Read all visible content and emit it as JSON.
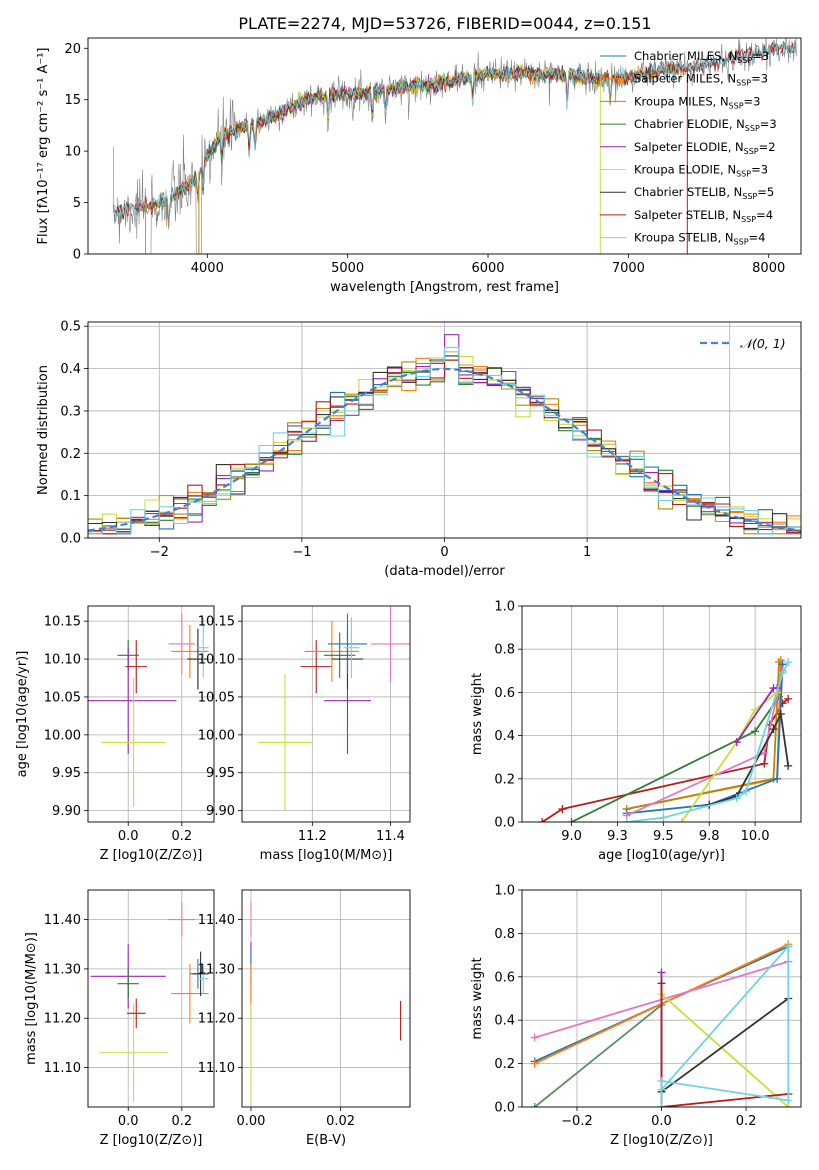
{
  "figure_title": "PLATE=2274, MJD=53726, FIBERID=0044, z=0.151",
  "colors": {
    "Chabrier MILES": "#1f77b4",
    "Salpeter MILES": "#ff7f0e",
    "Kroupa MILES": "#b8860b",
    "Chabrier ELODIE": "#2e7d32",
    "Salpeter ELODIE": "#9c27b0",
    "Kroupa ELODIE": "#cddc39",
    "Chabrier STELIB": "#333333",
    "Salpeter STELIB": "#b71c1c",
    "Kroupa STELIB": "#6dd5e0",
    "data": "#808080",
    "normal": "#4a7fcf",
    "pink": "#e377c2",
    "teal": "#17becf",
    "olive": "#5a8f63"
  },
  "chart_data": [
    {
      "id": "spectrum",
      "type": "line",
      "title": "PLATE=2274, MJD=53726, FIBERID=0044, z=0.151",
      "xlabel": "wavelength [Angstrom, rest frame]",
      "ylabel": "Flux [f_λ 10^-17 erg cm^-2 s^-1 A^-1]",
      "xlim": [
        3150,
        8230
      ],
      "ylim": [
        0,
        21
      ],
      "xticks": [
        4000,
        5000,
        6000,
        7000,
        8000
      ],
      "yticks": [
        0,
        5,
        10,
        15,
        20
      ],
      "legend_position": "upper-right",
      "grid": false,
      "continuum": {
        "x": [
          3330,
          3500,
          3700,
          3900,
          4000,
          4100,
          4300,
          4500,
          4700,
          4900,
          5000,
          5200,
          5400,
          5600,
          5800,
          6000,
          6200,
          6400,
          6600,
          6800,
          7000,
          7200,
          7400,
          7600,
          7800,
          8000,
          8200
        ],
        "y": [
          4.2,
          4.5,
          5.0,
          7.0,
          9.5,
          11.5,
          12.5,
          13.5,
          15.0,
          15.5,
          15.5,
          15.8,
          16.2,
          16.5,
          17.0,
          17.5,
          17.5,
          17.5,
          17.3,
          17.0,
          17.2,
          17.8,
          18.0,
          18.6,
          19.2,
          19.7,
          20.0
        ]
      },
      "series": [
        {
          "name": "Chabrier MILES, N_SSP=3",
          "label": "Chabrier MILES, N",
          "ssp": "3"
        },
        {
          "name": "Salpeter MILES, N_SSP=3",
          "label": "Salpeter MILES, N",
          "ssp": "3"
        },
        {
          "name": "Kroupa MILES, N_SSP=3",
          "label": "Kroupa MILES, N",
          "ssp": "3"
        },
        {
          "name": "Chabrier ELODIE, N_SSP=3",
          "label": "Chabrier ELODIE, N",
          "ssp": "3"
        },
        {
          "name": "Salpeter ELODIE, N_SSP=2",
          "label": "Salpeter ELODIE, N",
          "ssp": "2"
        },
        {
          "name": "Kroupa ELODIE, N_SSP=3",
          "label": "Kroupa ELODIE, N",
          "ssp": "3"
        },
        {
          "name": "Chabrier STELIB, N_SSP=5",
          "label": "Chabrier STELIB, N",
          "ssp": "5"
        },
        {
          "name": "Salpeter STELIB, N_SSP=4",
          "label": "Salpeter STELIB, N",
          "ssp": "4"
        },
        {
          "name": "Kroupa STELIB, N_SSP=4",
          "label": "Kroupa STELIB, N",
          "ssp": "4"
        }
      ],
      "ssp_subscript": "SSP"
    },
    {
      "id": "residuals",
      "type": "histogram",
      "xlabel": "(data-model)/error",
      "ylabel": "Normed distribution",
      "xlim": [
        -2.5,
        2.5
      ],
      "ylim": [
        0,
        0.51
      ],
      "xticks": [
        -2,
        -1,
        0,
        1,
        2
      ],
      "yticks": [
        0.0,
        0.1,
        0.2,
        0.3,
        0.4,
        0.5
      ],
      "grid": true,
      "legend": "𝒩(0, 1)",
      "legend_position": "upper-right",
      "bin_width": 0.1,
      "bins_from": -2.5,
      "peak_values": [
        0.42,
        0.44,
        0.42,
        0.44,
        0.48,
        0.44,
        0.43,
        0.42,
        0.45
      ]
    },
    {
      "id": "age_vs_Z",
      "type": "errorbar",
      "xlabel": "Z [log10(Z/Z⊙)]",
      "ylabel": "age  [log10(age/yr)]",
      "xlim": [
        -0.15,
        0.32
      ],
      "ylim": [
        9.885,
        10.17
      ],
      "xticks": [
        0.0,
        0.2
      ],
      "yticks": [
        9.9,
        9.95,
        10.0,
        10.05,
        10.1,
        10.15
      ],
      "grid": true,
      "points": [
        {
          "series": "Chabrier ELODIE",
          "x": 0.0,
          "y": 10.105,
          "xerr": 0.04,
          "yerr": 0.02
        },
        {
          "series": "Salpeter ELODIE",
          "x": 0.0,
          "y": 10.045,
          "xerr": 0.18,
          "yerr": 0.07
        },
        {
          "series": "Kroupa ELODIE",
          "x": 0.02,
          "y": 9.99,
          "xerr": 0.12,
          "yerr": 0.085
        },
        {
          "series": "Salpeter STELIB",
          "x": 0.03,
          "y": 10.09,
          "xerr": 0.04,
          "yerr": 0.035
        },
        {
          "series": "Salpeter MILES",
          "x": 0.23,
          "y": 10.11,
          "xerr": 0.07,
          "yerr": 0.035
        },
        {
          "series": "Chabrier MILES",
          "x": 0.26,
          "y": 10.1,
          "xerr": 0.03,
          "yerr": 0.04
        },
        {
          "series": "Chabrier STELIB",
          "x": 0.26,
          "y": 10.1,
          "xerr": 0.04,
          "yerr": 0.04
        },
        {
          "series": "pink",
          "x": 0.2,
          "y": 10.12,
          "xerr": 0.05,
          "yerr": 0.04
        },
        {
          "series": "Kroupa STELIB",
          "x": 0.28,
          "y": 10.115,
          "xerr": 0.02,
          "yerr": 0.04
        }
      ]
    },
    {
      "id": "age_vs_mass",
      "type": "errorbar",
      "xlabel": "mass [log10(M/M⊙)]",
      "ylabel": "",
      "xlim": [
        11.02,
        11.45
      ],
      "ylim": [
        9.885,
        10.17
      ],
      "xticks": [
        11.2,
        11.4
      ],
      "yticks": [
        9.9,
        9.95,
        10.0,
        10.05,
        10.1,
        10.15
      ],
      "grid": true,
      "points": [
        {
          "series": "Kroupa ELODIE",
          "x": 11.13,
          "y": 9.99,
          "xerr": 0.07,
          "yerr": 0.09
        },
        {
          "series": "Salpeter STELIB",
          "x": 11.21,
          "y": 10.09,
          "xerr": 0.04,
          "yerr": 0.035
        },
        {
          "series": "Salpeter MILES",
          "x": 11.25,
          "y": 10.11,
          "xerr": 0.07,
          "yerr": 0.04
        },
        {
          "series": "Salpeter ELODIE",
          "x": 11.29,
          "y": 10.045,
          "xerr": 0.06,
          "yerr": 0.07
        },
        {
          "series": "Chabrier ELODIE",
          "x": 11.27,
          "y": 10.105,
          "xerr": 0.04,
          "yerr": 0.03
        },
        {
          "series": "Chabrier STELIB",
          "x": 11.29,
          "y": 10.1,
          "xerr": 0.04,
          "yerr": 0.04
        },
        {
          "series": "Chabrier MILES",
          "x": 11.29,
          "y": 10.12,
          "xerr": 0.05,
          "yerr": 0.04
        },
        {
          "series": "Kroupa STELIB",
          "x": 11.3,
          "y": 10.115,
          "xerr": 0.02,
          "yerr": 0.04
        },
        {
          "series": "pink",
          "x": 11.4,
          "y": 10.12,
          "xerr": 0.05,
          "yerr": 0.05
        }
      ]
    },
    {
      "id": "cum_weight_vs_age",
      "type": "line",
      "xlabel": "age  [log10(age/yr)]",
      "ylabel": "mass weight",
      "xlim": [
        8.73,
        10.25
      ],
      "ylim": [
        0,
        1.0
      ],
      "xticks": [
        9.0,
        9.25,
        9.5,
        9.75,
        10.0
      ],
      "yticks": [
        0.0,
        0.2,
        0.4,
        0.6,
        0.8,
        1.0
      ],
      "grid": true,
      "series": [
        {
          "name": "Salpeter STELIB",
          "x": [
            8.84,
            8.95,
            10.05,
            10.08,
            10.15,
            10.18
          ],
          "y": [
            0.0,
            0.06,
            0.27,
            0.45,
            0.55,
            0.57
          ]
        },
        {
          "name": "Chabrier ELODIE",
          "x": [
            9.0,
            10.0,
            10.13
          ],
          "y": [
            0.0,
            0.42,
            0.58
          ]
        },
        {
          "name": "Salpeter MILES",
          "x": [
            9.3,
            10.12,
            10.14
          ],
          "y": [
            0.06,
            0.2,
            0.75
          ]
        },
        {
          "name": "Kroupa MILES",
          "x": [
            9.3,
            10.1,
            10.13
          ],
          "y": [
            0.06,
            0.2,
            0.74
          ]
        },
        {
          "name": "Chabrier MILES",
          "x": [
            9.3,
            9.75,
            10.12,
            10.15
          ],
          "y": [
            0.04,
            0.08,
            0.2,
            0.73
          ]
        },
        {
          "name": "pink",
          "x": [
            9.3,
            10.05,
            10.15
          ],
          "y": [
            0.03,
            0.32,
            0.7
          ]
        },
        {
          "name": "Kroupa ELODIE",
          "x": [
            9.6,
            9.9,
            10.0,
            10.12
          ],
          "y": [
            0.0,
            0.37,
            0.52,
            0.6
          ]
        },
        {
          "name": "Salpeter ELODIE",
          "x": [
            9.9,
            10.1,
            10.12
          ],
          "y": [
            0.37,
            0.62,
            0.62
          ]
        },
        {
          "name": "Chabrier STELIB",
          "x": [
            9.75,
            9.9,
            10.1,
            10.14,
            10.18
          ],
          "y": [
            0.08,
            0.12,
            0.43,
            0.5,
            0.26
          ]
        },
        {
          "name": "Kroupa STELIB",
          "x": [
            9.3,
            9.5,
            9.9,
            9.95,
            10.15,
            10.18
          ],
          "y": [
            0.0,
            0.02,
            0.11,
            0.14,
            0.69,
            0.74
          ]
        }
      ]
    },
    {
      "id": "mass_vs_Z",
      "type": "errorbar",
      "xlabel": "Z [log10(Z/Z⊙)]",
      "ylabel": "mass [log10(M/M⊙)]",
      "xlim": [
        -0.15,
        0.32
      ],
      "ylim": [
        11.02,
        11.46
      ],
      "xticks": [
        0.0,
        0.2
      ],
      "yticks": [
        11.1,
        11.2,
        11.3,
        11.4
      ],
      "grid": true,
      "points": [
        {
          "series": "Salpeter ELODIE",
          "x": 0.0,
          "y": 11.285,
          "xerr": 0.14,
          "yerr": 0.065
        },
        {
          "series": "Chabrier ELODIE",
          "x": 0.0,
          "y": 11.27,
          "xerr": 0.04,
          "yerr": 0.03
        },
        {
          "series": "Kroupa ELODIE",
          "x": 0.02,
          "y": 11.13,
          "xerr": 0.13,
          "yerr": 0.1
        },
        {
          "series": "Salpeter STELIB",
          "x": 0.03,
          "y": 11.21,
          "xerr": 0.035,
          "yerr": 0.03
        },
        {
          "series": "pink",
          "x": 0.2,
          "y": 11.4,
          "xerr": 0.05,
          "yerr": 0.035
        },
        {
          "series": "Salpeter MILES",
          "x": 0.23,
          "y": 11.25,
          "xerr": 0.07,
          "yerr": 0.06
        },
        {
          "series": "Chabrier MILES",
          "x": 0.26,
          "y": 11.29,
          "xerr": 0.03,
          "yerr": 0.03
        },
        {
          "series": "Chabrier STELIB",
          "x": 0.27,
          "y": 11.29,
          "xerr": 0.03,
          "yerr": 0.045
        },
        {
          "series": "Kroupa STELIB",
          "x": 0.28,
          "y": 11.28,
          "xerr": 0.02,
          "yerr": 0.03
        }
      ]
    },
    {
      "id": "mass_vs_ebv",
      "type": "errorbar",
      "xlabel": "E(B-V)",
      "ylabel": "",
      "xlim": [
        -0.002,
        0.0355
      ],
      "ylim": [
        11.02,
        11.46
      ],
      "xticks": [
        0.0,
        0.02
      ],
      "xticklabels": [
        "0.00",
        "0.02"
      ],
      "yticks": [
        11.1,
        11.2,
        11.3,
        11.4
      ],
      "grid": true,
      "points": [
        {
          "series": "pink",
          "x": 0.0,
          "y": 11.4,
          "xerr": 0.0,
          "yerr": 0.035
        },
        {
          "series": "Salpeter ELODIE",
          "x": 0.0,
          "y": 11.29,
          "xerr": 0.0,
          "yerr": 0.065
        },
        {
          "series": "Chabrier MILES",
          "x": 0.0,
          "y": 11.3,
          "xerr": 0.0,
          "yerr": 0.03
        },
        {
          "series": "Salpeter MILES",
          "x": 0.0,
          "y": 11.25,
          "xerr": 0.0,
          "yerr": 0.06
        },
        {
          "series": "Kroupa ELODIE",
          "x": 0.0,
          "y": 11.13,
          "xerr": 0.0,
          "yerr": 0.1
        },
        {
          "series": "Salpeter STELIB",
          "x": 0.0334,
          "y": 11.195,
          "xerr": 0.0,
          "yerr": 0.04
        }
      ]
    },
    {
      "id": "cum_weight_vs_Z",
      "type": "line",
      "xlabel": "Z [log10(Z/Z⊙)]",
      "ylabel": "mass weight",
      "xlim": [
        -0.33,
        0.33
      ],
      "ylim": [
        0,
        1.0
      ],
      "xticks": [
        -0.2,
        0.0,
        0.2
      ],
      "yticks": [
        0.0,
        0.2,
        0.4,
        0.6,
        0.8,
        1.0
      ],
      "grid": true,
      "series": [
        {
          "name": "olive",
          "x": [
            -0.3,
            0.0
          ],
          "y": [
            0.0,
            0.47
          ]
        },
        {
          "name": "Chabrier MILES",
          "x": [
            -0.3,
            0.3
          ],
          "y": [
            0.21,
            0.74
          ]
        },
        {
          "name": "Salpeter MILES",
          "x": [
            -0.3,
            0.3
          ],
          "y": [
            0.2,
            0.75
          ]
        },
        {
          "name": "pink",
          "x": [
            -0.3,
            0.3
          ],
          "y": [
            0.32,
            0.67
          ]
        },
        {
          "name": "Kroupa ELODIE",
          "x": [
            0.0,
            0.3
          ],
          "y": [
            0.52,
            0.0
          ]
        },
        {
          "name": "Salpeter ELODIE",
          "x": [
            0.0,
            0.0
          ],
          "y": [
            0.0,
            0.62
          ]
        },
        {
          "name": "Chabrier STELIB",
          "x": [
            0.0,
            0.3
          ],
          "y": [
            0.07,
            0.5
          ]
        },
        {
          "name": "Salpeter STELIB",
          "x": [
            0.0,
            0.0,
            0.3
          ],
          "y": [
            0.57,
            0.0,
            0.06
          ]
        },
        {
          "name": "Kroupa STELIB",
          "x": [
            0.0,
            0.0,
            0.3,
            0.3,
            0.0
          ],
          "y": [
            0.0,
            0.12,
            0.03,
            0.74,
            0.08
          ]
        }
      ]
    }
  ]
}
